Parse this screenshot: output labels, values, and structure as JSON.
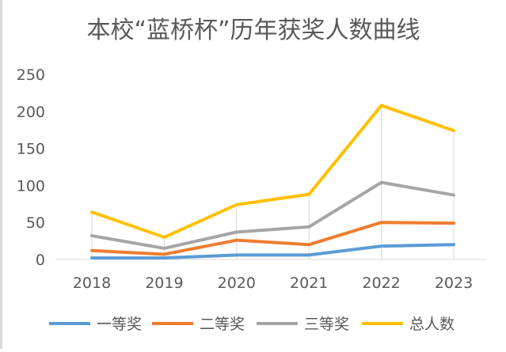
{
  "chart_data": {
    "type": "line",
    "title": "本校“蓝桥杯”历年获奖人数曲线",
    "xlabel": "",
    "ylabel": "",
    "categories": [
      "2018",
      "2019",
      "2020",
      "2021",
      "2022",
      "2023"
    ],
    "ylim": [
      0,
      250
    ],
    "yticks": [
      0,
      50,
      100,
      150,
      200,
      250
    ],
    "grid": "vertical-droplines",
    "legend": "bottom",
    "series": [
      {
        "name": "一等奖",
        "color": "#5b9bd5",
        "values": [
          2,
          2,
          6,
          6,
          18,
          20
        ]
      },
      {
        "name": "二等奖",
        "color": "#ed7d31",
        "values": [
          12,
          7,
          26,
          20,
          50,
          49
        ]
      },
      {
        "name": "三等奖",
        "color": "#a5a5a5",
        "values": [
          32,
          15,
          37,
          44,
          104,
          87
        ]
      },
      {
        "name": "总人数",
        "color": "#ffc000",
        "values": [
          64,
          30,
          74,
          88,
          208,
          174
        ]
      }
    ]
  }
}
